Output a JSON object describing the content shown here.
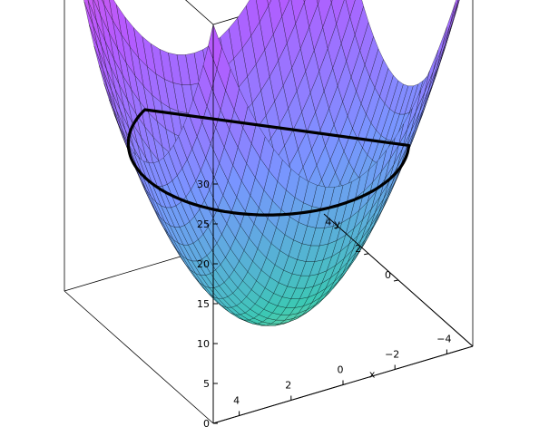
{
  "chart_data": {
    "type": "surface3d",
    "title": "",
    "function": "z = x^2 + y^2",
    "x": {
      "label": "x",
      "range": [
        -5,
        5
      ],
      "ticks": [
        4,
        2,
        0,
        -2,
        -4
      ],
      "tick_labels": [
        "4",
        "2",
        "0",
        "−2",
        "−4"
      ]
    },
    "y": {
      "label": "y",
      "range": [
        -5,
        5
      ],
      "ticks": [
        0,
        2,
        4
      ],
      "tick_labels": [
        "0",
        "2",
        "4"
      ]
    },
    "z": {
      "label": "",
      "range": [
        0,
        50
      ],
      "ticks": [
        0,
        5,
        10,
        15,
        20,
        25,
        30
      ],
      "tick_labels": [
        "0",
        "5",
        "10",
        "15",
        "20",
        "25",
        "30"
      ]
    },
    "grid_lines": 30,
    "intersection_curve": {
      "description": "circle x^2 + y^2 = 22 drawn on the surface",
      "radius_squared": 22,
      "color": "#000000"
    },
    "box": "full",
    "colors": {
      "low": "#c8e88c",
      "teal": "#3cc8b4",
      "blue": "#7896ff",
      "purple": "#b45aff",
      "magenta": "#ff5ac8",
      "mesh": "#000000"
    }
  }
}
